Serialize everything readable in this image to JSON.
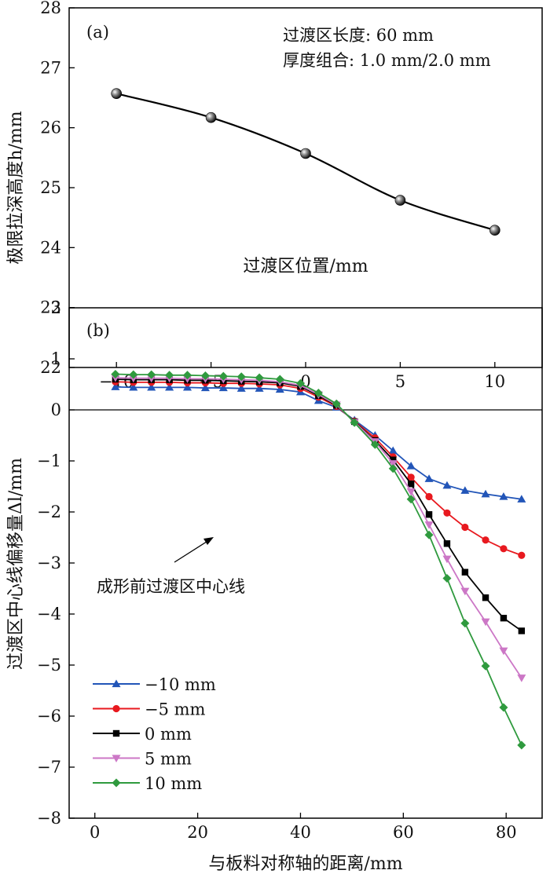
{
  "chart_data": [
    {
      "type": "line",
      "panel_label": "(a)",
      "annotations": [
        "过渡区长度: 60 mm",
        "厚度组合: 1.0 mm/2.0 mm"
      ],
      "xlabel": "过渡区位置/mm",
      "ylabel": "极限拉深高度h/mm",
      "xlim": [
        -12.5,
        12.5
      ],
      "ylim": [
        22,
        28
      ],
      "x_ticks": [
        -10,
        -5,
        0,
        5,
        10
      ],
      "x_tick_labels": [
        "−10",
        "−5",
        "0",
        "5",
        "10"
      ],
      "y_ticks": [
        22,
        23,
        24,
        25,
        26,
        27,
        28
      ],
      "y_tick_labels": [
        "22",
        "23",
        "24",
        "25",
        "26",
        "27",
        "28"
      ],
      "grid": false,
      "series": [
        {
          "color": "#000000",
          "marker": "sphere",
          "x": [
            -10,
            -5,
            0,
            5,
            10
          ],
          "y": [
            26.57,
            26.17,
            25.57,
            24.79,
            24.29
          ]
        }
      ]
    },
    {
      "type": "line",
      "panel_label": "(b)",
      "annotation": "成形前过渡区中心线",
      "xlabel": "与板料对称轴的距离/mm",
      "ylabel": "过渡区中心线偏移量Δl/mm",
      "xlim": [
        -5,
        87
      ],
      "ylim": [
        -8,
        2
      ],
      "x_ticks": [
        0,
        20,
        40,
        60,
        80
      ],
      "x_tick_labels": [
        "0",
        "20",
        "40",
        "60",
        "80"
      ],
      "y_ticks": [
        -8,
        -7,
        -6,
        -5,
        -4,
        -3,
        -2,
        -1,
        0,
        1,
        2
      ],
      "y_tick_labels": [
        "−8",
        "−7",
        "−6",
        "−5",
        "−4",
        "−3",
        "−2",
        "−1",
        "0",
        "1",
        "2"
      ],
      "reference_line_y": 0,
      "grid": false,
      "legend_position": "lower-left",
      "x": [
        4,
        7.5,
        11,
        14.5,
        18,
        21.5,
        25,
        28.5,
        32,
        36,
        40,
        43.5,
        47,
        50.5,
        54.5,
        58,
        61.5,
        65,
        68.5,
        72,
        76,
        79.5,
        83
      ],
      "series": [
        {
          "name": "−10 mm",
          "color": "#2255b8",
          "marker": "triangle-up",
          "values": [
            0.45,
            0.44,
            0.44,
            0.44,
            0.44,
            0.43,
            0.43,
            0.42,
            0.42,
            0.4,
            0.35,
            0.18,
            0.05,
            -0.2,
            -0.5,
            -0.8,
            -1.1,
            -1.35,
            -1.48,
            -1.58,
            -1.65,
            -1.7,
            -1.75
          ]
        },
        {
          "name": "−5 mm",
          "color": "#e8191f",
          "marker": "circle",
          "values": [
            0.55,
            0.54,
            0.54,
            0.54,
            0.53,
            0.53,
            0.52,
            0.52,
            0.51,
            0.49,
            0.42,
            0.25,
            0.07,
            -0.22,
            -0.55,
            -0.92,
            -1.32,
            -1.7,
            -2.02,
            -2.3,
            -2.55,
            -2.72,
            -2.85
          ]
        },
        {
          "name": "0 mm",
          "color": "#000000",
          "marker": "square",
          "values": [
            0.6,
            0.59,
            0.59,
            0.59,
            0.58,
            0.58,
            0.57,
            0.56,
            0.55,
            0.53,
            0.46,
            0.28,
            0.09,
            -0.23,
            -0.6,
            -0.98,
            -1.45,
            -2.05,
            -2.62,
            -3.18,
            -3.68,
            -4.08,
            -4.33
          ]
        },
        {
          "name": "5 mm",
          "color": "#cc77c6",
          "marker": "triangle-down",
          "values": [
            0.63,
            0.62,
            0.62,
            0.62,
            0.61,
            0.61,
            0.6,
            0.59,
            0.58,
            0.55,
            0.48,
            0.3,
            0.1,
            -0.24,
            -0.62,
            -1.05,
            -1.6,
            -2.25,
            -2.92,
            -3.55,
            -4.15,
            -4.72,
            -5.25
          ]
        },
        {
          "name": "10 mm",
          "color": "#2f9a3e",
          "marker": "diamond",
          "values": [
            0.7,
            0.69,
            0.69,
            0.68,
            0.68,
            0.67,
            0.66,
            0.65,
            0.63,
            0.6,
            0.52,
            0.33,
            0.12,
            -0.25,
            -0.68,
            -1.15,
            -1.75,
            -2.45,
            -3.3,
            -4.18,
            -5.02,
            -5.83,
            -6.57
          ]
        }
      ]
    }
  ]
}
